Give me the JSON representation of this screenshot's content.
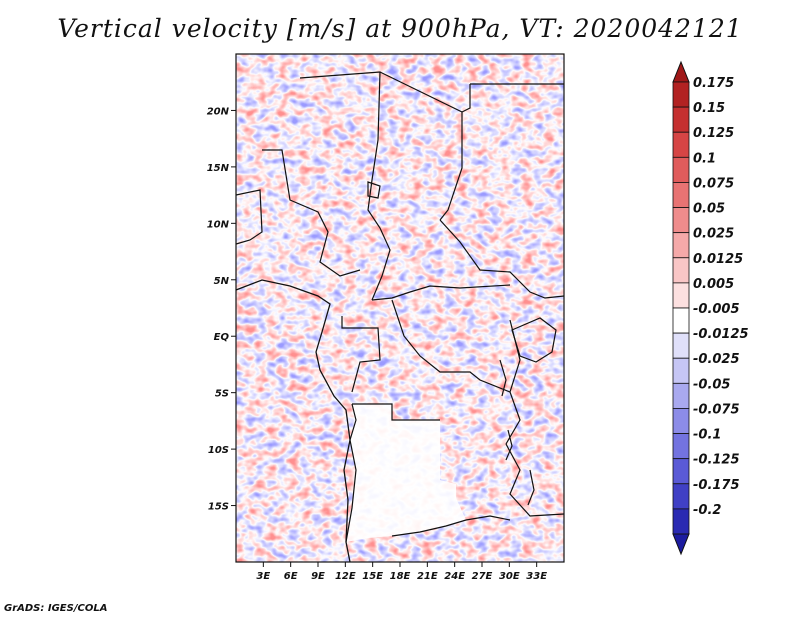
{
  "title": "Vertical velocity [m/s] at 900hPa, VT: 2020042121",
  "credit": "GrADS: IGES/COLA",
  "map": {
    "lon_range": [
      0,
      36
    ],
    "lat_range": [
      -20,
      25
    ],
    "lat_ticks": [
      {
        "value": 20,
        "label": "20N"
      },
      {
        "value": 15,
        "label": "15N"
      },
      {
        "value": 10,
        "label": "10N"
      },
      {
        "value": 5,
        "label": "5N"
      },
      {
        "value": 0,
        "label": "EQ"
      },
      {
        "value": -5,
        "label": "5S"
      },
      {
        "value": -10,
        "label": "10S"
      },
      {
        "value": -15,
        "label": "15S"
      }
    ],
    "lon_ticks": [
      {
        "value": 3,
        "label": "3E"
      },
      {
        "value": 6,
        "label": "6E"
      },
      {
        "value": 9,
        "label": "9E"
      },
      {
        "value": 12,
        "label": "12E"
      },
      {
        "value": 15,
        "label": "15E"
      },
      {
        "value": 18,
        "label": "18E"
      },
      {
        "value": 21,
        "label": "21E"
      },
      {
        "value": 24,
        "label": "24E"
      },
      {
        "value": 27,
        "label": "27E"
      },
      {
        "value": 30,
        "label": "30E"
      },
      {
        "value": 33,
        "label": "33E"
      }
    ]
  },
  "colorbar": {
    "levels": [
      {
        "label": "0.175",
        "color": "#b22222"
      },
      {
        "label": "0.15",
        "color": "#c53030"
      },
      {
        "label": "0.125",
        "color": "#d64545"
      },
      {
        "label": "0.1",
        "color": "#e05c5c"
      },
      {
        "label": "0.075",
        "color": "#e87373"
      },
      {
        "label": "0.05",
        "color": "#ef8c8c"
      },
      {
        "label": "0.025",
        "color": "#f5a9a9"
      },
      {
        "label": "0.0125",
        "color": "#f9c6c6"
      },
      {
        "label": "0.005",
        "color": "#fce0e0"
      },
      {
        "label": "-0.005",
        "color": "#ffffff"
      },
      {
        "label": "-0.0125",
        "color": "#e0e0fa"
      },
      {
        "label": "-0.025",
        "color": "#c6c6f5"
      },
      {
        "label": "-0.05",
        "color": "#a9a9ef"
      },
      {
        "label": "-0.075",
        "color": "#8c8ce8"
      },
      {
        "label": "-0.1",
        "color": "#7373e0"
      },
      {
        "label": "-0.125",
        "color": "#5a5ad6"
      },
      {
        "label": "-0.175",
        "color": "#4040c5"
      },
      {
        "label": "-0.2",
        "color": "#2a2ab2"
      }
    ],
    "top_arrow_color": "#a01818",
    "bottom_arrow_color": "#1c1ca0"
  }
}
